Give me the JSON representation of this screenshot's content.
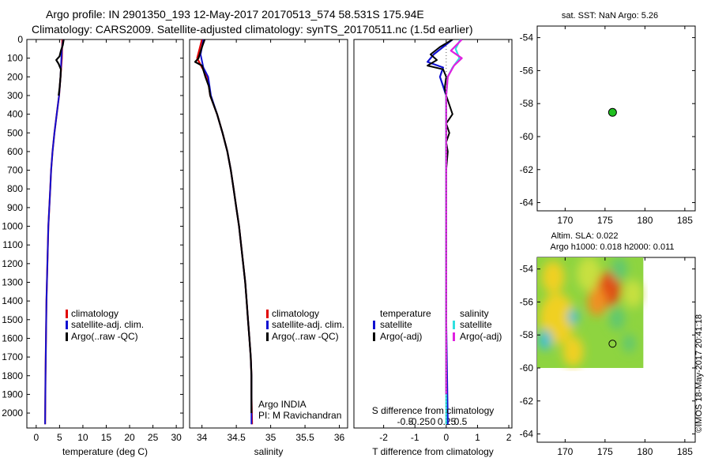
{
  "header": {
    "line1": "Argo profile: IN 2901350_193 12-May-2017 20170513_574 58.531S 175.94E",
    "line2": "Climatology: CARS2009. Satellite-adjusted climatology: synTS_20170511.nc (1.5d earlier)"
  },
  "colors": {
    "climatology": "#e00000",
    "satellite": "#1010d0",
    "argo": "#000000",
    "satellite_salinity": "#30e0e0",
    "argo_salinity": "#e020e0",
    "marker": "#20c020"
  },
  "chart_data": [
    {
      "type": "line",
      "id": "temperature",
      "xlabel": "temperature (deg C)",
      "ylabel": "",
      "xlim": [
        -2,
        31.5
      ],
      "ylim": [
        2080,
        0
      ],
      "xticks": [
        0,
        5,
        10,
        15,
        20,
        25,
        30
      ],
      "yticks": [
        0,
        100,
        200,
        300,
        400,
        500,
        600,
        700,
        800,
        900,
        1000,
        1100,
        1200,
        1300,
        1400,
        1500,
        1600,
        1700,
        1800,
        1900,
        2000
      ],
      "legend": [
        "climatology",
        "satellite-adj. clim.",
        "Argo(..raw -QC)"
      ],
      "series": [
        {
          "name": "climatology",
          "color": "#e00000",
          "points": [
            [
              5.6,
              0
            ],
            [
              5.5,
              100
            ],
            [
              5.2,
              200
            ],
            [
              4.9,
              300
            ],
            [
              4.4,
              400
            ],
            [
              3.9,
              500
            ],
            [
              3.5,
              600
            ],
            [
              3.2,
              700
            ],
            [
              3.0,
              800
            ],
            [
              2.8,
              900
            ],
            [
              2.6,
              1000
            ],
            [
              2.4,
              1200
            ],
            [
              2.2,
              1400
            ],
            [
              2.1,
              1600
            ],
            [
              2.0,
              1800
            ],
            [
              1.9,
              2060
            ]
          ]
        },
        {
          "name": "satellite-adj. clim.",
          "color": "#1010d0",
          "points": [
            [
              5.8,
              0
            ],
            [
              5.5,
              50
            ],
            [
              5.4,
              100
            ],
            [
              5.2,
              200
            ],
            [
              4.9,
              300
            ],
            [
              4.4,
              400
            ],
            [
              3.9,
              500
            ],
            [
              3.5,
              600
            ],
            [
              3.2,
              700
            ],
            [
              3.0,
              800
            ],
            [
              2.8,
              900
            ],
            [
              2.6,
              1000
            ],
            [
              2.4,
              1200
            ],
            [
              2.2,
              1400
            ],
            [
              2.1,
              1600
            ],
            [
              2.0,
              1800
            ],
            [
              1.9,
              2060
            ]
          ]
        },
        {
          "name": "Argo(..raw -QC)",
          "color": "#000000",
          "points": [
            [
              5.9,
              0
            ],
            [
              5.7,
              30
            ],
            [
              5.3,
              60
            ],
            [
              5.0,
              90
            ],
            [
              4.3,
              110
            ],
            [
              4.8,
              130
            ],
            [
              5.3,
              160
            ],
            [
              5.2,
              200
            ],
            [
              5.0,
              260
            ],
            [
              4.8,
              300
            ]
          ]
        }
      ]
    },
    {
      "type": "line",
      "id": "salinity",
      "xlabel": "salinity",
      "ylabel": "",
      "xlim": [
        33.82,
        36.12
      ],
      "ylim": [
        2080,
        0
      ],
      "xticks": [
        34,
        34.5,
        35,
        35.5,
        36
      ],
      "legend": [
        "climatology",
        "satellite-adj. clim.",
        "Argo(..raw -QC)"
      ],
      "annotation": [
        "Argo INDIA",
        "PI: M Ravichandran"
      ],
      "series": [
        {
          "name": "climatology",
          "color": "#e00000",
          "points": [
            [
              34.0,
              0
            ],
            [
              33.93,
              100
            ],
            [
              34.0,
              150
            ],
            [
              34.08,
              200
            ],
            [
              34.12,
              300
            ],
            [
              34.22,
              400
            ],
            [
              34.3,
              500
            ],
            [
              34.37,
              600
            ],
            [
              34.42,
              700
            ],
            [
              34.46,
              800
            ],
            [
              34.5,
              900
            ],
            [
              34.54,
              1000
            ],
            [
              34.57,
              1100
            ],
            [
              34.6,
              1200
            ],
            [
              34.63,
              1300
            ],
            [
              34.65,
              1400
            ],
            [
              34.67,
              1500
            ],
            [
              34.69,
              1600
            ],
            [
              34.71,
              1700
            ],
            [
              34.72,
              1800
            ],
            [
              34.72,
              1900
            ],
            [
              34.73,
              2060
            ]
          ]
        },
        {
          "name": "satellite-adj. clim.",
          "color": "#1010d0",
          "points": [
            [
              34.02,
              0
            ],
            [
              33.98,
              80
            ],
            [
              34.02,
              150
            ],
            [
              34.09,
              200
            ],
            [
              34.13,
              300
            ],
            [
              34.22,
              400
            ],
            [
              34.3,
              500
            ],
            [
              34.37,
              600
            ],
            [
              34.42,
              700
            ],
            [
              34.46,
              800
            ],
            [
              34.5,
              900
            ],
            [
              34.54,
              1000
            ],
            [
              34.57,
              1100
            ],
            [
              34.6,
              1200
            ],
            [
              34.63,
              1300
            ],
            [
              34.65,
              1400
            ],
            [
              34.67,
              1500
            ],
            [
              34.69,
              1600
            ],
            [
              34.71,
              1700
            ],
            [
              34.72,
              1800
            ],
            [
              34.72,
              1900
            ],
            [
              34.72,
              2060
            ]
          ]
        },
        {
          "name": "Argo(..raw -QC)",
          "color": "#000000",
          "points": [
            [
              34.04,
              0
            ],
            [
              34.0,
              40
            ],
            [
              33.95,
              100
            ],
            [
              33.9,
              120
            ],
            [
              34.0,
              140
            ],
            [
              34.05,
              200
            ],
            [
              34.1,
              250
            ],
            [
              34.12,
              300
            ],
            [
              34.22,
              400
            ],
            [
              34.3,
              500
            ],
            [
              34.37,
              600
            ],
            [
              34.42,
              700
            ],
            [
              34.46,
              800
            ],
            [
              34.5,
              900
            ],
            [
              34.54,
              1000
            ],
            [
              34.57,
              1100
            ],
            [
              34.6,
              1200
            ],
            [
              34.63,
              1300
            ],
            [
              34.65,
              1400
            ],
            [
              34.67,
              1500
            ],
            [
              34.69,
              1600
            ],
            [
              34.71,
              1700
            ],
            [
              34.72,
              1800
            ],
            [
              34.72,
              1900
            ],
            [
              34.72,
              2000
            ]
          ]
        }
      ]
    },
    {
      "type": "line",
      "id": "difference",
      "xlabel": "T difference from climatology",
      "xlabel_top": "S difference from climatology",
      "ylabel": "",
      "xlim": [
        -2.95,
        2.1
      ],
      "ylim": [
        2080,
        0
      ],
      "xticks": [
        -2,
        -1,
        0,
        1,
        2
      ],
      "sticks": [
        -0.5,
        -0.25,
        0,
        0.25,
        0.5
      ],
      "stick_labels": [
        "-0.5",
        "-0.25",
        "0",
        "0.25",
        "0.5"
      ],
      "legend_left_title": "temperature",
      "legend_right_title": "salinity",
      "legend": [
        "satellite",
        "Argo(-adj)",
        "satellite",
        "Argo(-adj)"
      ],
      "series": [
        {
          "name": "satellite",
          "color": "#1010d0",
          "points": [
            [
              0.2,
              0
            ],
            [
              -0.1,
              40
            ],
            [
              -0.4,
              80
            ],
            [
              -0.6,
              120
            ],
            [
              -0.1,
              150
            ],
            [
              -0.2,
              200
            ],
            [
              -0.1,
              250
            ],
            [
              0,
              300
            ],
            [
              0,
              500
            ],
            [
              0,
              1000
            ],
            [
              0,
              1500
            ],
            [
              0.05,
              2060
            ]
          ]
        },
        {
          "name": "Argo(-adj)",
          "color": "#000000",
          "points": [
            [
              0.2,
              0
            ],
            [
              -0.2,
              40
            ],
            [
              -0.5,
              80
            ],
            [
              -0.3,
              110
            ],
            [
              -0.6,
              140
            ],
            [
              -0.1,
              160
            ],
            [
              0,
              200
            ],
            [
              -0.05,
              260
            ],
            [
              0,
              300
            ],
            [
              0.2,
              400
            ],
            [
              0,
              450
            ],
            [
              0.1,
              500
            ],
            [
              0,
              550
            ],
            [
              0.05,
              600
            ],
            [
              0,
              700
            ],
            [
              0,
              900
            ],
            [
              0,
              1400
            ],
            [
              0,
              1900
            ]
          ]
        },
        {
          "name": "satellite",
          "color": "#30e0e0",
          "points": [
            [
              0.45,
              0
            ],
            [
              0.3,
              50
            ],
            [
              0.42,
              100
            ],
            [
              0.2,
              150
            ],
            [
              0.05,
              200
            ],
            [
              0,
              300
            ],
            [
              0,
              1000
            ],
            [
              0,
              1500
            ],
            [
              0,
              2060
            ]
          ]
        },
        {
          "name": "Argo(-adj)",
          "color": "#e020e0",
          "points": [
            [
              0.5,
              0
            ],
            [
              0.15,
              60
            ],
            [
              0.5,
              100
            ],
            [
              0.25,
              140
            ],
            [
              0.05,
              200
            ],
            [
              0,
              300
            ],
            [
              0,
              1500
            ],
            [
              0,
              1900
            ]
          ]
        }
      ]
    },
    {
      "type": "scatter",
      "id": "sst-map",
      "title": "sat. SST: NaN Argo: 5.26",
      "xlim": [
        166.5,
        186.3
      ],
      "ylim": [
        -64.5,
        -53.3
      ],
      "xticks": [
        170,
        175,
        180,
        185
      ],
      "yticks": [
        -54,
        -56,
        -58,
        -60,
        -62,
        -64
      ],
      "series": [
        {
          "name": "",
          "color": "#20c020",
          "points": [
            [
              175.94,
              -58.53
            ]
          ]
        }
      ]
    },
    {
      "type": "heatmap",
      "id": "sla-map",
      "title_line1": "Altim. SLA: 0.022",
      "title_line2": "Argo h1000: 0.018 h2000: 0.011",
      "xlim": [
        166.5,
        186.3
      ],
      "ylim": [
        -64.5,
        -53.3
      ],
      "xticks": [
        170,
        175,
        180,
        185
      ],
      "yticks": [
        -54,
        -56,
        -58,
        -60,
        -62,
        -64
      ],
      "data_extent": [
        166.5,
        179.8,
        -60.0,
        -53.3
      ],
      "blobs": [
        {
          "x": 169.0,
          "y": -57.0,
          "level": 0.55,
          "r": 2.2
        },
        {
          "x": 171.0,
          "y": -56.9,
          "level": 0.15,
          "r": 0.7
        },
        {
          "x": 167.5,
          "y": -58.3,
          "level": 0.15,
          "r": 0.9
        },
        {
          "x": 173.0,
          "y": -54.3,
          "level": 0.35,
          "r": 1.5
        },
        {
          "x": 175.5,
          "y": -55.2,
          "level": 1.0,
          "r": 1.5
        },
        {
          "x": 174.0,
          "y": -56.0,
          "level": 0.8,
          "r": 1.2
        },
        {
          "x": 176.8,
          "y": -54.0,
          "level": 0.25,
          "r": 1.0
        },
        {
          "x": 176.5,
          "y": -57.0,
          "level": 0.3,
          "r": 1.0
        },
        {
          "x": 178.5,
          "y": -55.5,
          "level": 0.5,
          "r": 1.2
        },
        {
          "x": 178.0,
          "y": -58.5,
          "level": 0.3,
          "r": 0.8
        },
        {
          "x": 171.0,
          "y": -59.0,
          "level": 0.7,
          "r": 1.3
        },
        {
          "x": 168.5,
          "y": -54.5,
          "level": 0.55,
          "r": 1.4
        }
      ],
      "series": [
        {
          "name": "",
          "color": "#000000",
          "points": [
            [
              175.94,
              -58.53
            ]
          ]
        }
      ]
    }
  ],
  "credit": "©IMOS 18-May-2017 20:41:18"
}
